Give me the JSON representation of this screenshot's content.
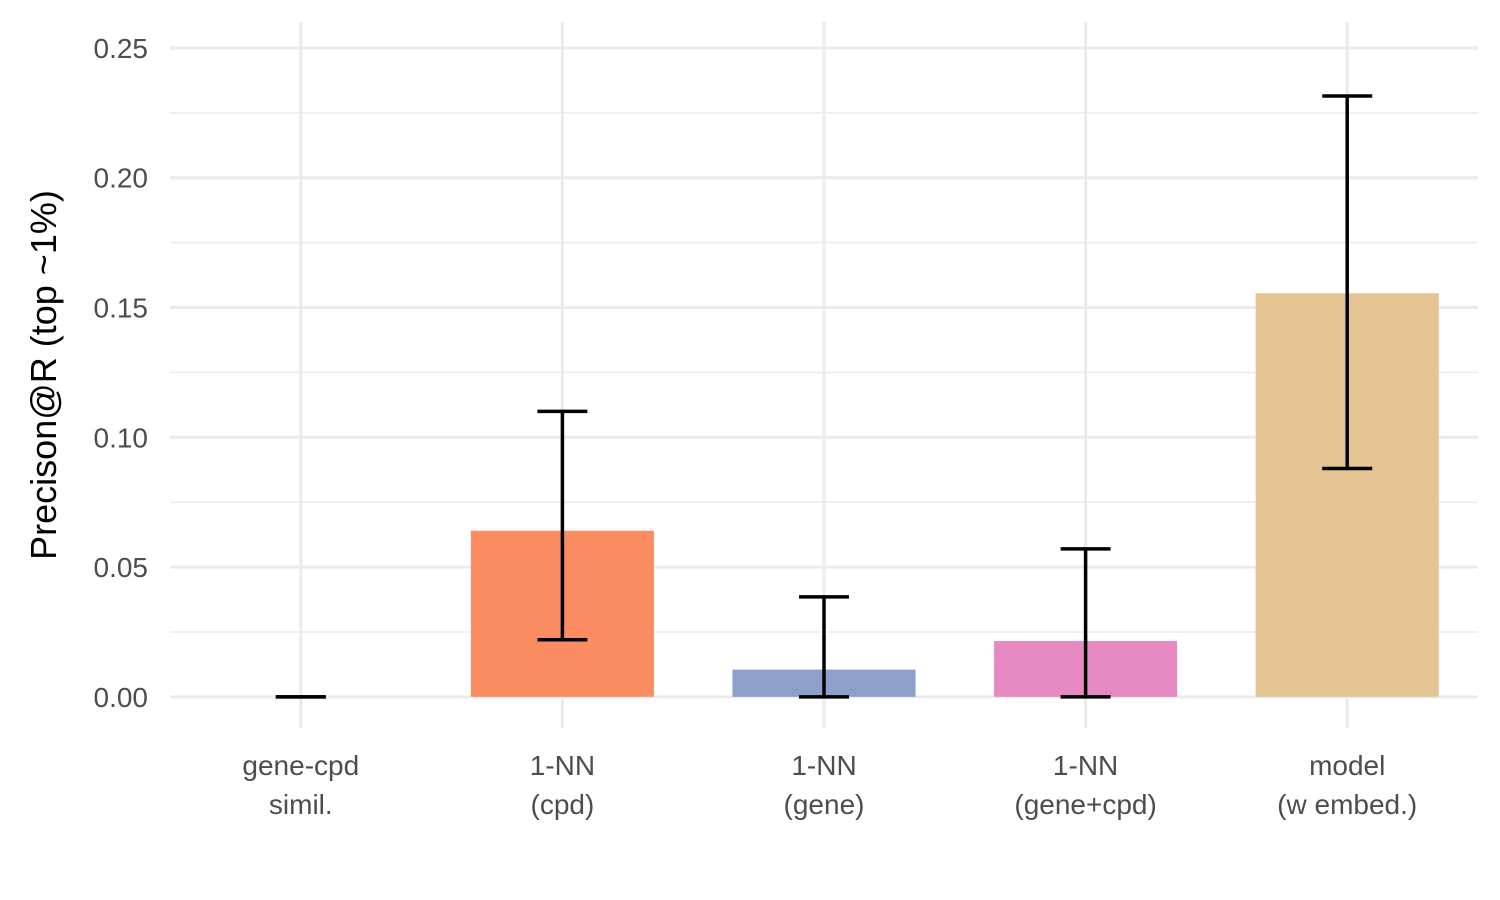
{
  "chart_data": {
    "type": "bar",
    "ylabel": "Precison@R (top ~1%)",
    "xlabel": "",
    "ylim": [
      -0.012,
      0.26
    ],
    "yticks": [
      0.0,
      0.05,
      0.1,
      0.15,
      0.2,
      0.25
    ],
    "ytick_labels": [
      "0.00",
      "0.05",
      "0.10",
      "0.15",
      "0.20",
      "0.25"
    ],
    "grid": true,
    "legend": "none",
    "categories": [
      {
        "lines": [
          "gene-cpd",
          "simil."
        ],
        "value": 0.0,
        "err_low": 0.0,
        "err_high": 0.0,
        "color": "#66c2a5"
      },
      {
        "lines": [
          "1-NN",
          "(cpd)"
        ],
        "value": 0.064,
        "err_low": 0.022,
        "err_high": 0.11,
        "color": "#fc8d62"
      },
      {
        "lines": [
          "1-NN",
          "(gene)"
        ],
        "value": 0.0105,
        "err_low": 0.0,
        "err_high": 0.0385,
        "color": "#8da0cb"
      },
      {
        "lines": [
          "1-NN",
          "(gene+cpd)"
        ],
        "value": 0.0215,
        "err_low": 0.0,
        "err_high": 0.057,
        "color": "#e78ac3"
      },
      {
        "lines": [
          "model",
          "(w embed.)"
        ],
        "value": 0.1555,
        "err_low": 0.088,
        "err_high": 0.2315,
        "color": "#e5c494"
      }
    ]
  }
}
